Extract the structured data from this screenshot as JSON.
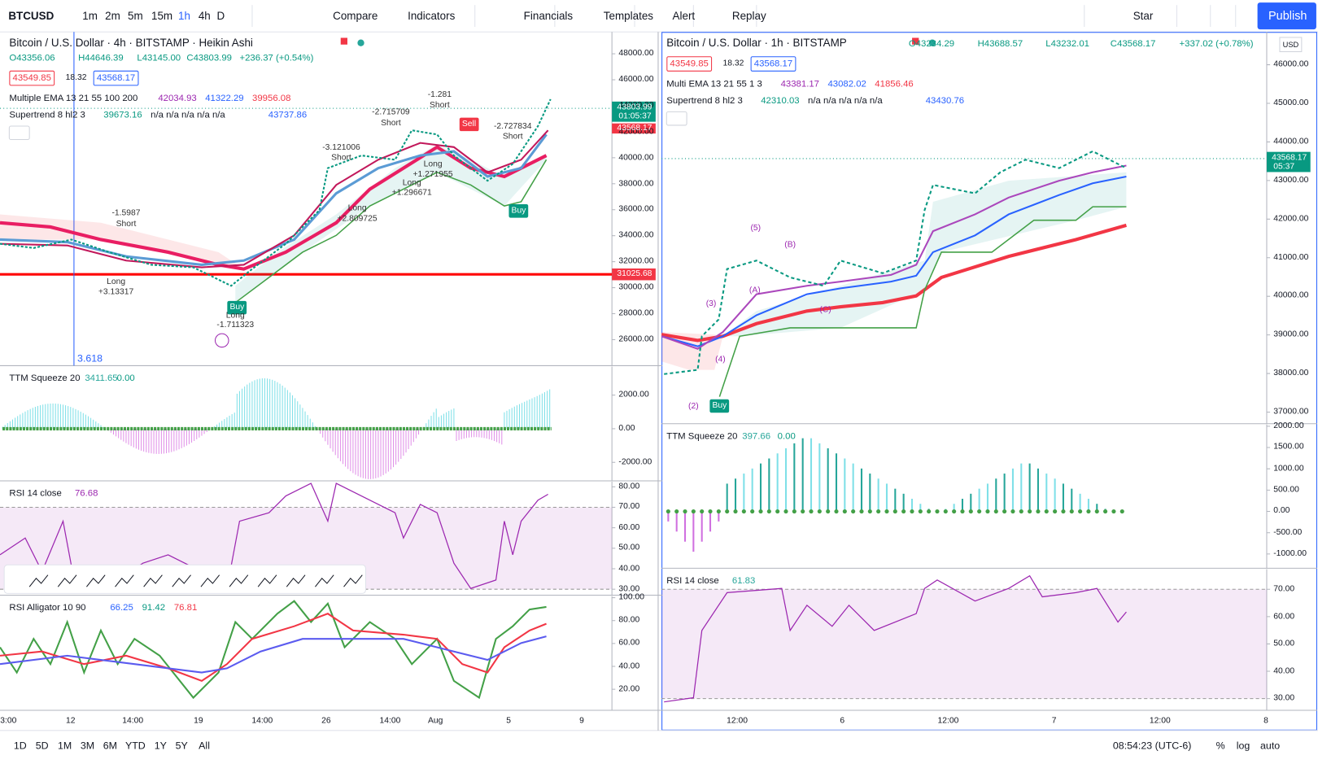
{
  "toolbar": {
    "symbol": "BTCUSD",
    "intervals": [
      "1m",
      "2m",
      "5m",
      "15m",
      "1h",
      "4h",
      "D"
    ],
    "tools": [
      "Compare",
      "Indicators",
      "Financials",
      "Templates",
      "Alert",
      "Replay"
    ],
    "star": "Star",
    "publish": "Publish"
  },
  "left": {
    "title": "Bitcoin / U.S. Dollar · 4h · BITSTAMP · Heikin Ashi",
    "ohlc": [
      "O43356.06",
      "H44646.39",
      "L43145.00",
      "C43803.99",
      "+236.37 (+0.54%)"
    ],
    "bid": "43549.85",
    "spread": "18.32",
    "ask": "43568.17",
    "ema": {
      "name": "Multiple EMA 13 21 55 100 200",
      "values": [
        "42034.93",
        "41322.29",
        "39956.08"
      ]
    },
    "supertrend": {
      "name": "Supertrend 8 hl2 3",
      "values": [
        "39673.16",
        "n/a n/a n/a n/a n/a",
        "43737.86"
      ]
    },
    "ylim": [
      24000,
      49680
    ],
    "yticks": [
      {
        "value": 48000,
        "label": "48000.00"
      },
      {
        "value": 46000,
        "label": "46000.00"
      },
      {
        "value": 44000,
        "label": "44000.00"
      },
      {
        "value": 42000,
        "label": "42000.00"
      },
      {
        "value": 40000,
        "label": "40000.00"
      },
      {
        "value": 38000,
        "label": "38000.00"
      },
      {
        "value": 36000,
        "label": "36000.00"
      },
      {
        "value": 34000,
        "label": "34000.00"
      },
      {
        "value": 32000,
        "label": "32000.00"
      },
      {
        "value": 30000,
        "label": "30000.00"
      },
      {
        "value": 28000,
        "label": "28000.00"
      },
      {
        "value": 26000,
        "label": "26000.00"
      }
    ],
    "price_tag": {
      "value": 43803.99,
      "label": "43803.99",
      "countdown": "01:05:37"
    },
    "bid_tag": {
      "value": 43568.17,
      "label": "43568.17"
    },
    "hline": {
      "value": 31025.68,
      "label": "31025.68"
    },
    "crosshair_label": "3.618",
    "annotations": [
      "Sell",
      "Buy",
      "-1.281",
      "Short",
      "-2.715709",
      "Short",
      "-3.121006",
      "Short",
      "-1.5987",
      "Short",
      "Long",
      "+2.809725",
      "Long",
      "+1.271955",
      "Long",
      "+1.296671",
      "Long",
      "+3.13317",
      "Long",
      "-1.711323",
      "-2.727834",
      "Short",
      "Buy"
    ],
    "panes": [
      {
        "name": "TTM Squeeze 20",
        "values": [
          "3411.65",
          "0.00"
        ],
        "ylim": [
          -3100,
          3700
        ],
        "yticks": [
          {
            "value": 2000,
            "label": "2000.00"
          },
          {
            "value": 0,
            "label": "0.00"
          },
          {
            "value": -2000,
            "label": "-2000.00"
          }
        ]
      },
      {
        "name": "RSI 14 close",
        "values": [
          "76.68"
        ],
        "ylim": [
          27.1,
          82.5
        ],
        "yticks": [
          {
            "value": 80,
            "label": "80.00"
          },
          {
            "value": 70,
            "label": "70.00"
          },
          {
            "value": 60,
            "label": "60.00"
          },
          {
            "value": 50,
            "label": "50.00"
          },
          {
            "value": 40,
            "label": "40.00"
          },
          {
            "value": 30,
            "label": "30.00"
          }
        ]
      },
      {
        "name": "RSI Alligator 10 90",
        "values": [
          "66.25",
          "91.42",
          "76.81"
        ],
        "ylim": [
          1.6,
          101.5
        ],
        "yticks": [
          {
            "value": 100,
            "label": "100.00"
          },
          {
            "value": 80,
            "label": "80.00"
          },
          {
            "value": 60,
            "label": "60.00"
          },
          {
            "value": 40,
            "label": "40.00"
          },
          {
            "value": 20,
            "label": "20.00"
          }
        ]
      }
    ],
    "xticks": [
      "3:00",
      "12",
      "14:00",
      "19",
      "14:00",
      "26",
      "14:00",
      "Aug",
      "5",
      "9"
    ]
  },
  "right": {
    "title": "Bitcoin / U.S. Dollar · 1h · BITSTAMP",
    "ohlc": [
      "O43234.29",
      "H43688.57",
      "L43232.01",
      "C43568.17",
      "+337.02 (+0.78%)"
    ],
    "bid": "43549.85",
    "spread": "18.32",
    "ask": "43568.17",
    "currency": "USD",
    "ema": {
      "name": "Multi EMA 13 21 55 1 3",
      "values": [
        "43381.17",
        "43082.02",
        "41856.46"
      ]
    },
    "supertrend": {
      "name": "Supertrend 8 hl2 3",
      "values": [
        "42310.03",
        "n/a n/a n/a n/a n/a",
        "43430.76"
      ]
    },
    "ylim": [
      36700,
      46850
    ],
    "yticks": [
      {
        "value": 46000,
        "label": "46000.00"
      },
      {
        "value": 45000,
        "label": "45000.00"
      },
      {
        "value": 44000,
        "label": "44000.00"
      },
      {
        "value": 43000,
        "label": "43000.00"
      },
      {
        "value": 42000,
        "label": "42000.00"
      },
      {
        "value": 41000,
        "label": "41000.00"
      },
      {
        "value": 40000,
        "label": "40000.00"
      },
      {
        "value": 39000,
        "label": "39000.00"
      },
      {
        "value": 38000,
        "label": "38000.00"
      },
      {
        "value": 37000,
        "label": "37000.00"
      }
    ],
    "price_tag": {
      "value": 43568.17,
      "label": "43568.17",
      "countdown": "05:37"
    },
    "annotations": [
      "(5)",
      "(B)",
      "(A)",
      "(3)",
      "(C)",
      "(4)",
      "(2)",
      "Buy"
    ],
    "panes": [
      {
        "name": "TTM Squeeze 20",
        "values": [
          "397.66",
          "0.00"
        ],
        "ylim": [
          -1335,
          2040
        ],
        "yticks": [
          {
            "value": 2000,
            "label": "2000.00"
          },
          {
            "value": 1500,
            "label": "1500.00"
          },
          {
            "value": 1000,
            "label": "1000.00"
          },
          {
            "value": 500,
            "label": "500.00"
          },
          {
            "value": 0,
            "label": "0.00"
          },
          {
            "value": -500,
            "label": "-500.00"
          },
          {
            "value": -1000,
            "label": "-1000.00"
          }
        ]
      },
      {
        "name": "RSI 14 close",
        "values": [
          "61.83"
        ],
        "ylim": [
          25.7,
          77.4
        ],
        "yticks": [
          {
            "value": 70,
            "label": "70.00"
          },
          {
            "value": 60,
            "label": "60.00"
          },
          {
            "value": 50,
            "label": "50.00"
          },
          {
            "value": 40,
            "label": "40.00"
          },
          {
            "value": 30,
            "label": "30.00"
          }
        ]
      }
    ],
    "xticks": [
      "12:00",
      "6",
      "12:00",
      "7",
      "12:00",
      "8"
    ]
  },
  "bottom": {
    "ranges": [
      "1D",
      "5D",
      "1M",
      "3M",
      "6M",
      "YTD",
      "1Y",
      "5Y",
      "All"
    ],
    "time": "08:54:23 (UTC-6)",
    "options": [
      "%",
      "log",
      "auto"
    ]
  }
}
